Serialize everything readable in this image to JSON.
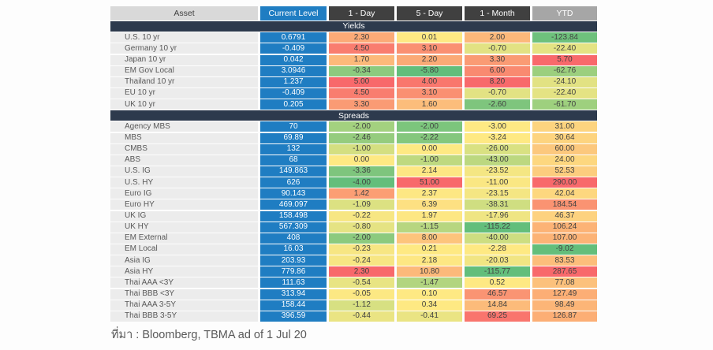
{
  "colors": {
    "accent_blue": "#1f7dc2",
    "dark_header_bg": "#404040",
    "ytd_header_bg": "#a6a6a6",
    "asset_header_bg": "#d9d9d9",
    "section_bar_bg": "#2d3a4d",
    "row_label_bg": "#ececec",
    "heat_scale_min_green": "#63be7b",
    "heat_scale_mid_yellow": "#fee983",
    "heat_scale_max_red": "#f8696b"
  },
  "chart_data": {
    "type": "heatmap",
    "columns": [
      "Asset",
      "Current Level",
      "1 - Day",
      "5 - Day",
      "1 - Month",
      "YTD"
    ],
    "legend_position": "none",
    "grid": false,
    "sections": [
      {
        "title": "Yields",
        "rows": [
          {
            "asset": "U.S. 10 yr",
            "current_level": "0.6791",
            "changes": [
              {
                "value": "2.30",
                "color": "#fbaa77"
              },
              {
                "value": "0.01",
                "color": "#fee983"
              },
              {
                "value": "2.00",
                "color": "#fcb87a"
              },
              {
                "value": "-123.84",
                "color": "#6ec17c"
              }
            ]
          },
          {
            "asset": "Germany 10 yr",
            "current_level": "-0.409",
            "changes": [
              {
                "value": "4.50",
                "color": "#f97d6f"
              },
              {
                "value": "3.10",
                "color": "#fa9072"
              },
              {
                "value": "-0.70",
                "color": "#e2e283"
              },
              {
                "value": "-22.40",
                "color": "#e4e383"
              }
            ]
          },
          {
            "asset": "Japan 10 yr",
            "current_level": "0.042",
            "changes": [
              {
                "value": "1.70",
                "color": "#fcb97a"
              },
              {
                "value": "2.20",
                "color": "#fbaa76"
              },
              {
                "value": "3.30",
                "color": "#fa9b74"
              },
              {
                "value": "5.70",
                "color": "#f8696b"
              }
            ]
          },
          {
            "asset": "EM Gov Local",
            "current_level": "3.0946",
            "changes": [
              {
                "value": "-0.34",
                "color": "#8cca7e"
              },
              {
                "value": "-5.80",
                "color": "#63be7b"
              },
              {
                "value": "6.00",
                "color": "#f98a70"
              },
              {
                "value": "-62.76",
                "color": "#9ccf7e"
              }
            ]
          },
          {
            "asset": "Thailand 10 yr",
            "current_level": "1.237",
            "changes": [
              {
                "value": "5.00",
                "color": "#f8696b"
              },
              {
                "value": "4.00",
                "color": "#f9776d"
              },
              {
                "value": "8.20",
                "color": "#f8696b"
              },
              {
                "value": "-24.10",
                "color": "#e2e283"
              }
            ]
          },
          {
            "asset": "EU 10 yr",
            "current_level": "-0.409",
            "changes": [
              {
                "value": "4.50",
                "color": "#f97d6f"
              },
              {
                "value": "3.10",
                "color": "#fa9072"
              },
              {
                "value": "-0.70",
                "color": "#e2e283"
              },
              {
                "value": "-22.40",
                "color": "#e4e383"
              }
            ]
          },
          {
            "asset": "UK 10 yr",
            "current_level": "0.205",
            "changes": [
              {
                "value": "3.30",
                "color": "#fa9b74"
              },
              {
                "value": "1.60",
                "color": "#fcbd7b"
              },
              {
                "value": "-2.60",
                "color": "#7ec57d"
              },
              {
                "value": "-61.70",
                "color": "#9ed07e"
              }
            ]
          }
        ]
      },
      {
        "title": "Spreads",
        "rows": [
          {
            "asset": "Agency MBS",
            "current_level": "70",
            "changes": [
              {
                "value": "-2.00",
                "color": "#a3d17f"
              },
              {
                "value": "-2.00",
                "color": "#7cc57c"
              },
              {
                "value": "-3.00",
                "color": "#fee983"
              },
              {
                "value": "31.00",
                "color": "#fdd47f"
              }
            ]
          },
          {
            "asset": "MBS",
            "current_level": "69.89",
            "changes": [
              {
                "value": "-2.46",
                "color": "#95cc7e"
              },
              {
                "value": "-2.22",
                "color": "#84c77d"
              },
              {
                "value": "-3.24",
                "color": "#fee983"
              },
              {
                "value": "30.64",
                "color": "#fdd47f"
              }
            ]
          },
          {
            "asset": "CMBS",
            "current_level": "132",
            "changes": [
              {
                "value": "-1.00",
                "color": "#d4df81"
              },
              {
                "value": "0.00",
                "color": "#fee983"
              },
              {
                "value": "-26.00",
                "color": "#d9e182"
              },
              {
                "value": "60.00",
                "color": "#fcc87d"
              }
            ]
          },
          {
            "asset": "ABS",
            "current_level": "68",
            "changes": [
              {
                "value": "0.00",
                "color": "#fee983"
              },
              {
                "value": "-1.00",
                "color": "#bed980"
              },
              {
                "value": "-43.00",
                "color": "#bcd880"
              },
              {
                "value": "24.00",
                "color": "#fdd77f"
              }
            ]
          },
          {
            "asset": "U.S. IG",
            "current_level": "149.863",
            "changes": [
              {
                "value": "-3.36",
                "color": "#7ec57d"
              },
              {
                "value": "2.14",
                "color": "#fde783"
              },
              {
                "value": "-23.52",
                "color": "#f4e683"
              },
              {
                "value": "52.53",
                "color": "#fccd7e"
              }
            ]
          },
          {
            "asset": "U.S. HY",
            "current_level": "626",
            "changes": [
              {
                "value": "-4.00",
                "color": "#63be7b"
              },
              {
                "value": "51.00",
                "color": "#f8696b"
              },
              {
                "value": "-11.00",
                "color": "#fae783"
              },
              {
                "value": "290.00",
                "color": "#f8696b"
              }
            ]
          },
          {
            "asset": "Euro IG",
            "current_level": "90.143",
            "changes": [
              {
                "value": "1.42",
                "color": "#fb9e74"
              },
              {
                "value": "2.37",
                "color": "#fde783"
              },
              {
                "value": "-23.15",
                "color": "#f4e683"
              },
              {
                "value": "42.04",
                "color": "#fdd77f"
              }
            ]
          },
          {
            "asset": "Euro  HY",
            "current_level": "469.097",
            "changes": [
              {
                "value": "-1.09",
                "color": "#dce182"
              },
              {
                "value": "6.39",
                "color": "#fde082"
              },
              {
                "value": "-38.31",
                "color": "#cfde81"
              },
              {
                "value": "184.54",
                "color": "#fa9372"
              }
            ]
          },
          {
            "asset": "UK IG",
            "current_level": "158.498",
            "changes": [
              {
                "value": "-0.22",
                "color": "#f7e683"
              },
              {
                "value": "1.97",
                "color": "#fde783"
              },
              {
                "value": "-17.96",
                "color": "#efe583"
              },
              {
                "value": "46.37",
                "color": "#fdd27f"
              }
            ]
          },
          {
            "asset": "UK HY",
            "current_level": "567.309",
            "changes": [
              {
                "value": "-0.80",
                "color": "#e5e383"
              },
              {
                "value": "-1.15",
                "color": "#b7d680"
              },
              {
                "value": "-115.22",
                "color": "#63be7b"
              },
              {
                "value": "106.24",
                "color": "#fcb376"
              }
            ]
          },
          {
            "asset": "EM External",
            "current_level": "408",
            "changes": [
              {
                "value": "-2.00",
                "color": "#8cca7e"
              },
              {
                "value": "8.00",
                "color": "#fdc47c"
              },
              {
                "value": "-40.00",
                "color": "#cdde81"
              },
              {
                "value": "107.00",
                "color": "#fcb376"
              }
            ]
          },
          {
            "asset": "EM Local",
            "current_level": "16.03",
            "changes": [
              {
                "value": "-0.23",
                "color": "#f7e683"
              },
              {
                "value": "0.21",
                "color": "#fee983"
              },
              {
                "value": "-2.28",
                "color": "#fee983"
              },
              {
                "value": "-9.02",
                "color": "#63be7b"
              }
            ]
          },
          {
            "asset": "Asia IG",
            "current_level": "203.93",
            "changes": [
              {
                "value": "-0.24",
                "color": "#f7e683"
              },
              {
                "value": "2.18",
                "color": "#fde783"
              },
              {
                "value": "-20.03",
                "color": "#f1e583"
              },
              {
                "value": "83.53",
                "color": "#fcbe7b"
              }
            ]
          },
          {
            "asset": "Asia HY",
            "current_level": "779.86",
            "changes": [
              {
                "value": "2.30",
                "color": "#f8696b"
              },
              {
                "value": "10.80",
                "color": "#fcb97a"
              },
              {
                "value": "-115.77",
                "color": "#63be7b"
              },
              {
                "value": "287.65",
                "color": "#f8696b"
              }
            ]
          },
          {
            "asset": "Thai AAA <3Y",
            "current_level": "111.63",
            "changes": [
              {
                "value": "-0.54",
                "color": "#e8e483"
              },
              {
                "value": "-1.47",
                "color": "#b2d57f"
              },
              {
                "value": "0.52",
                "color": "#fee983"
              },
              {
                "value": "77.08",
                "color": "#fcc17c"
              }
            ]
          },
          {
            "asset": "Thai BBB <3Y",
            "current_level": "313.94",
            "changes": [
              {
                "value": "-0.05",
                "color": "#fce883"
              },
              {
                "value": "0.10",
                "color": "#fee983"
              },
              {
                "value": "46.57",
                "color": "#fa9473"
              },
              {
                "value": "127.49",
                "color": "#fcae75"
              }
            ]
          },
          {
            "asset": "Thai AAA 3-5Y",
            "current_level": "158.44",
            "changes": [
              {
                "value": "-1.12",
                "color": "#d7e082"
              },
              {
                "value": "0.34",
                "color": "#fee983"
              },
              {
                "value": "14.84",
                "color": "#fcbb7a"
              },
              {
                "value": "98.49",
                "color": "#fcb577"
              }
            ]
          },
          {
            "asset": "Thai BBB 3-5Y",
            "current_level": "396.59",
            "changes": [
              {
                "value": "-0.44",
                "color": "#eae483"
              },
              {
                "value": "-0.41",
                "color": "#eae483"
              },
              {
                "value": "69.25",
                "color": "#f9756d"
              },
              {
                "value": "126.87",
                "color": "#fcae75"
              }
            ]
          }
        ]
      }
    ],
    "source_note": "ที่มา : Bloomberg, TBMA ad of 1 Jul 20"
  }
}
